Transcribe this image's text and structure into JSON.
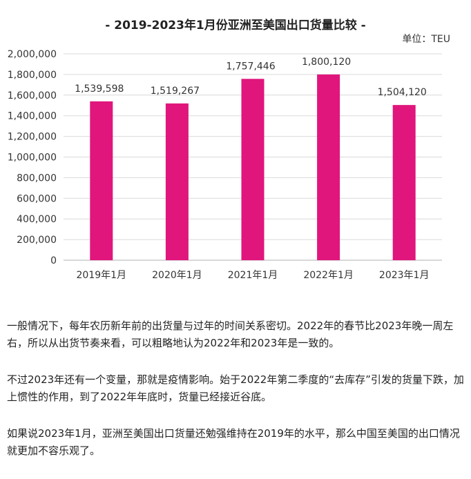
{
  "chart_data": {
    "type": "bar",
    "title": "- 2019-2023年1月份亚洲至美国出口货量比较 -",
    "unit": "单位：TEU",
    "categories": [
      "2019年1月",
      "2020年1月",
      "2021年1月",
      "2022年1月",
      "2023年1月"
    ],
    "values": [
      1539598,
      1519267,
      1757446,
      1800120,
      1504120
    ],
    "value_labels": [
      "1,539,598",
      "1,519,267",
      "1,757,446",
      "1,800,120",
      "1,504,120"
    ],
    "yticks": [
      0,
      200000,
      400000,
      600000,
      800000,
      1000000,
      1200000,
      1400000,
      1600000,
      1800000,
      2000000
    ],
    "ytick_labels": [
      "0",
      "200,000",
      "400,000",
      "600,000",
      "800,000",
      "1,000,000",
      "1,200,000",
      "1,400,000",
      "1,600,000",
      "1,800,000",
      "2,000,000"
    ],
    "ylim": [
      0,
      2000000
    ],
    "bar_color": "#e0167c",
    "grid": true,
    "legend": false,
    "xlabel": "",
    "ylabel": ""
  },
  "article": {
    "paragraphs": [
      "一般情况下，每年农历新年前的出货量与过年的时间关系密切。2022年的春节比2023年晚一周左右，所以从出货节奏来看，可以粗略地认为2022年和2023年是一致的。",
      "不过2023年还有一个变量，那就是疫情影响。始于2022年第二季度的“去库存”引发的货量下跌，加上惯性的作用，到了2022年年底时，货量已经接近谷底。",
      "如果说2023年1月，亚洲至美国出口货量还勉强维持在2019年的水平，那么中国至美国的出口情况就更加不容乐观了。"
    ]
  }
}
